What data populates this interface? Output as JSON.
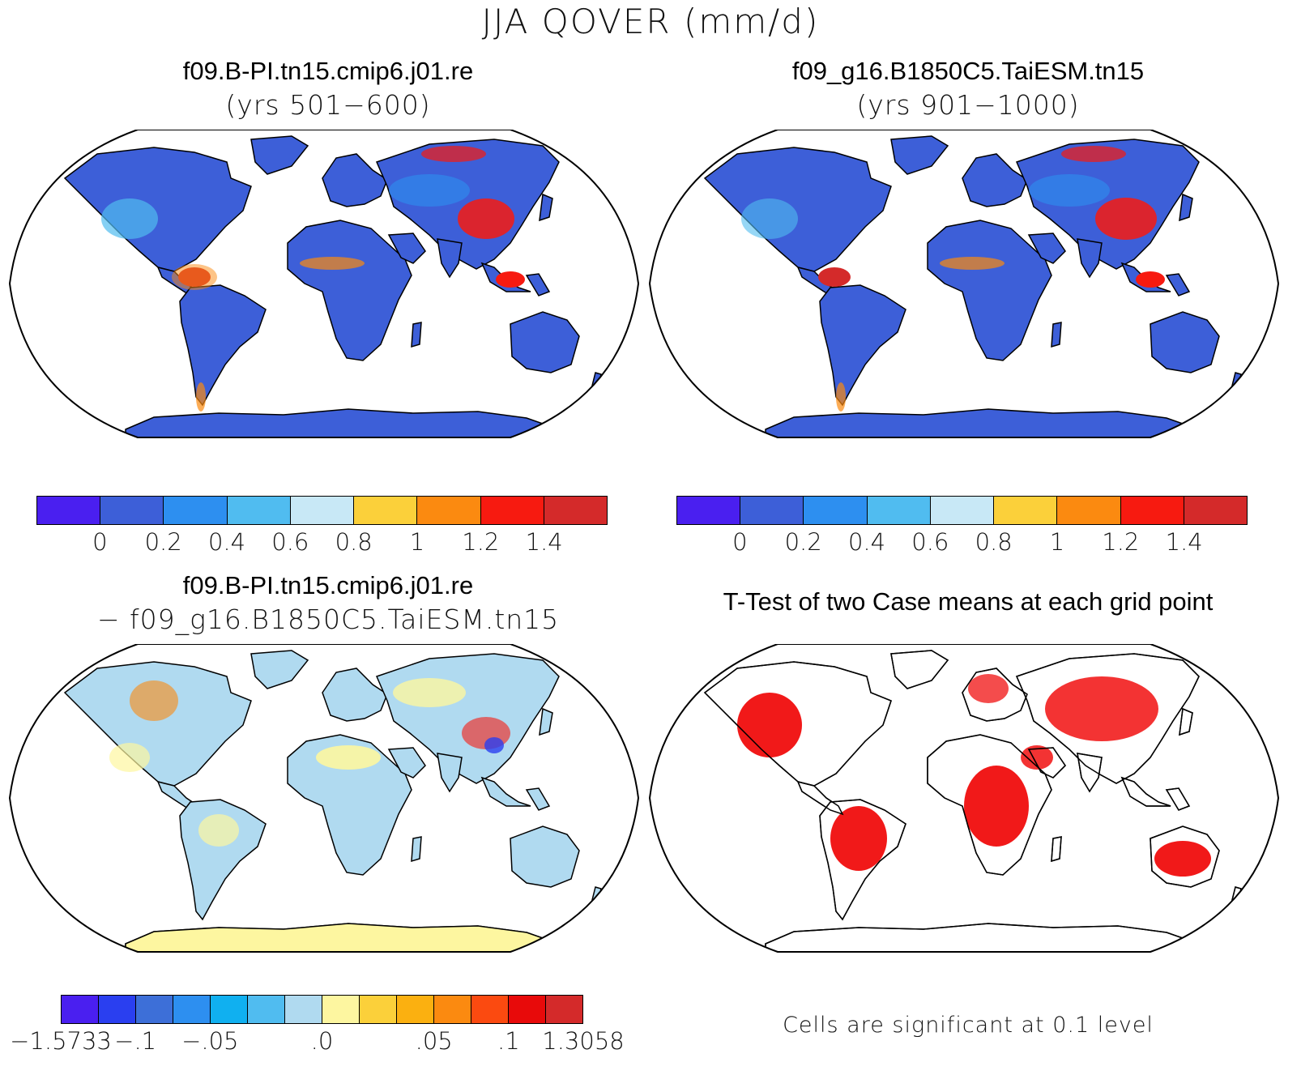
{
  "figure": {
    "title": "JJA QOVER (mm/d)"
  },
  "panels": {
    "top_left": {
      "title": "f09.B-PI.tn15.cmip6.j01.re",
      "subtitle": "(yrs 501−600)"
    },
    "top_right": {
      "title": "f09_g16.B1850C5.TaiESM.tn15",
      "subtitle": "(yrs 901−1000)"
    },
    "bottom_left": {
      "title": "f09.B-PI.tn15.cmip6.j01.re",
      "subtitle": "− f09_g16.B1850C5.TaiESM.tn15"
    },
    "bottom_right": {
      "title": "T-Test of two Case means at each grid point",
      "note": "Cells are significant at 0.1 level"
    }
  },
  "colorbars": {
    "mean": {
      "colors": [
        "#4a1ff0",
        "#3d5fd8",
        "#2d8ff0",
        "#50bcf0",
        "#c8e8f6",
        "#fbd03a",
        "#fb8a10",
        "#f71a10",
        "#d42a2a"
      ],
      "labels": [
        "0",
        "0.2",
        "0.4",
        "0.6",
        "0.8",
        "1",
        "1.2",
        "1.4"
      ]
    },
    "diff": {
      "colors": [
        "#4a1ff0",
        "#2a3ff0",
        "#3d6fd8",
        "#2d8ff0",
        "#10b0f0",
        "#50bcf0",
        "#b0daf0",
        "#fdf6a0",
        "#fbd03a",
        "#fbb010",
        "#fb8a10",
        "#fb4a10",
        "#e80a0a",
        "#d42a2a"
      ],
      "labels": [
        "−1.5733",
        "−.1",
        "−.05",
        ".0",
        ".05",
        ".1",
        "1.3058"
      ]
    },
    "ttest_color": "#f00000"
  }
}
